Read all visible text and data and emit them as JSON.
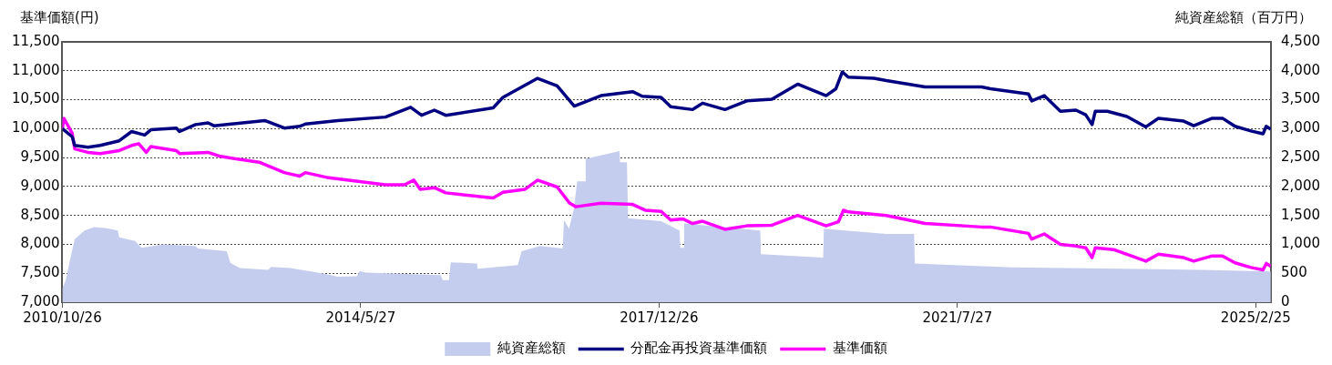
{
  "chart_data": {
    "type": "line",
    "ylabel": "基準価額(円)",
    "y2label": "純資産総額（百万円）",
    "legend": "bottom",
    "grid": "y",
    "marker": "none",
    "line_style": "solid",
    "xlim": [
      "2010-10-26",
      "2025-05-03"
    ],
    "xticks": [
      {
        "value": "2010-10-26",
        "label": "2010/10/26"
      },
      {
        "value": "2014-05-27",
        "label": "2014/5/27"
      },
      {
        "value": "2017-12-26",
        "label": "2017/12/26"
      },
      {
        "value": "2021-07-27",
        "label": "2021/7/27"
      },
      {
        "value": "2025-02-25",
        "label": "2025/2/25"
      }
    ],
    "ylim": [
      7000,
      11500
    ],
    "yticks": [
      {
        "value": 7000,
        "label": "7,000"
      },
      {
        "value": 7500,
        "label": "7,500"
      },
      {
        "value": 8000,
        "label": "8,000"
      },
      {
        "value": 8500,
        "label": "8,500"
      },
      {
        "value": 9000,
        "label": "9,000"
      },
      {
        "value": 9500,
        "label": "9,500"
      },
      {
        "value": 10000,
        "label": "10,000"
      },
      {
        "value": 10500,
        "label": "10,500"
      },
      {
        "value": 11000,
        "label": "11,000"
      },
      {
        "value": 11500,
        "label": "11,500"
      }
    ],
    "y2lim": [
      0,
      4500
    ],
    "y2ticks": [
      0,
      {
        "value": 500,
        "label": "500"
      },
      {
        "value": 1000,
        "label": "1,000"
      },
      {
        "value": 1500,
        "label": "1,500"
      },
      {
        "value": 2000,
        "label": "2,000"
      },
      {
        "value": 2500,
        "label": "2,500"
      },
      {
        "value": 3000,
        "label": "3,000"
      },
      {
        "value": 3500,
        "label": "3,500"
      },
      {
        "value": 4000,
        "label": "4,000"
      },
      {
        "value": 4500,
        "label": "4,500"
      }
    ],
    "series": [
      {
        "name": "純資産総額",
        "type": "area",
        "axis": "y2",
        "color": "#c5cdee",
        "x": [
          "2010-10-26",
          "2010-11-10",
          "2010-11-29",
          "2010-12-19",
          "2011-02-01",
          "2011-03-15",
          "2011-05-08",
          "2011-06-26",
          "2011-07-02",
          "2011-09-10",
          "2011-10-08",
          "2012-01-12",
          "2012-06-01",
          "2012-06-12",
          "2012-10-16",
          "2012-11-01",
          "2012-12-13",
          "2013-04-15",
          "2013-04-29",
          "2013-07-22",
          "2013-12-08",
          "2014-02-15",
          "2014-05-11",
          "2014-05-22",
          "2014-06-18",
          "2015-05-13",
          "2015-05-22",
          "2015-06-18",
          "2015-06-26",
          "2015-10-19",
          "2015-10-22",
          "2016-04-15",
          "2016-05-02",
          "2016-07-22",
          "2016-10-29",
          "2016-11-04",
          "2016-11-26",
          "2016-12-16",
          "2017-01-01",
          "2017-02-04",
          "2017-02-07",
          "2017-07-05",
          "2017-07-08",
          "2017-08-07",
          "2017-08-12",
          "2018-01-04",
          "2018-03-26",
          "2018-03-29",
          "2018-04-12",
          "2018-04-15",
          "2019-03-15",
          "2019-03-18",
          "2019-12-16",
          "2019-12-19",
          "2020-09-18",
          "2021-01-18",
          "2021-01-21",
          "2022-03-26",
          "2024-07-05",
          "2025-05-02"
        ],
        "values": [
          240,
          380,
          740,
          1090,
          1240,
          1300,
          1280,
          1240,
          1120,
          1060,
          940,
          1000,
          970,
          930,
          880,
          680,
          590,
          560,
          610,
          590,
          500,
          440,
          450,
          540,
          510,
          470,
          380,
          380,
          690,
          670,
          580,
          640,
          880,
          970,
          930,
          1420,
          1270,
          1590,
          2090,
          2090,
          2480,
          2610,
          2420,
          2420,
          1450,
          1400,
          1240,
          940,
          940,
          1360,
          1240,
          830,
          770,
          1270,
          1180,
          1180,
          670,
          600,
          560,
          530
        ]
      },
      {
        "name": "分配金再投資基準価額",
        "type": "line",
        "axis": "y",
        "color": "#000080",
        "x": [
          "2010-10-26",
          "2010-12-08",
          "2010-12-19",
          "2011-02-15",
          "2011-04-10",
          "2011-07-02",
          "2011-08-26",
          "2011-10-22",
          "2011-11-18",
          "2012-03-09",
          "2012-03-23",
          "2012-06-01",
          "2012-07-26",
          "2012-08-21",
          "2013-04-01",
          "2013-06-26",
          "2013-09-01",
          "2013-09-26",
          "2014-02-15",
          "2014-09-12",
          "2015-01-01",
          "2015-02-18",
          "2015-04-15",
          "2015-06-04",
          "2015-12-29",
          "2016-02-10",
          "2016-07-11",
          "2016-10-05",
          "2016-12-19",
          "2017-04-15",
          "2017-09-01",
          "2017-10-13",
          "2018-01-04",
          "2018-02-15",
          "2018-05-22",
          "2018-07-05",
          "2018-10-11",
          "2019-01-15",
          "2019-05-05",
          "2019-08-26",
          "2019-12-29",
          "2020-02-10",
          "2020-03-09",
          "2020-04-04",
          "2020-07-26",
          "2020-09-18",
          "2021-03-07",
          "2021-11-10",
          "2021-12-19",
          "2022-06-04",
          "2022-06-18",
          "2022-08-12",
          "2022-10-22",
          "2022-12-29",
          "2023-02-10",
          "2023-03-10",
          "2023-03-24",
          "2023-05-16",
          "2023-08-10",
          "2023-11-01",
          "2023-12-26",
          "2024-04-15",
          "2024-05-29",
          "2024-08-18",
          "2024-10-02",
          "2024-11-26",
          "2025-02-04",
          "2025-03-29",
          "2025-04-12",
          "2025-05-02"
        ],
        "values": [
          10000,
          9860,
          9710,
          9680,
          9710,
          9790,
          9950,
          9890,
          9980,
          10010,
          9950,
          10070,
          10100,
          10050,
          10140,
          10010,
          10040,
          10080,
          10140,
          10200,
          10370,
          10230,
          10320,
          10230,
          10360,
          10540,
          10870,
          10740,
          10390,
          10570,
          10640,
          10560,
          10540,
          10380,
          10330,
          10440,
          10330,
          10480,
          10510,
          10770,
          10570,
          10690,
          10980,
          10890,
          10870,
          10830,
          10720,
          10720,
          10690,
          10600,
          10480,
          10570,
          10300,
          10320,
          10240,
          10070,
          10300,
          10300,
          10210,
          10030,
          10180,
          10130,
          10050,
          10180,
          10180,
          10040,
          9960,
          9910,
          10040,
          9990
        ]
      },
      {
        "name": "基準価額",
        "type": "line",
        "axis": "y",
        "color": "#ff00ff",
        "x": [
          "2010-10-26",
          "2010-11-01",
          "2010-12-08",
          "2010-12-19",
          "2011-02-15",
          "2011-04-10",
          "2011-07-02",
          "2011-08-26",
          "2011-09-26",
          "2011-10-29",
          "2011-11-18",
          "2012-03-09",
          "2012-03-23",
          "2012-07-26",
          "2012-09-18",
          "2013-03-07",
          "2013-06-26",
          "2013-09-01",
          "2013-09-26",
          "2014-01-07",
          "2014-09-12",
          "2014-12-05",
          "2015-01-15",
          "2015-02-12",
          "2015-04-15",
          "2015-06-04",
          "2015-08-12",
          "2015-12-29",
          "2016-02-10",
          "2016-05-16",
          "2016-07-11",
          "2016-10-05",
          "2016-11-29",
          "2016-12-26",
          "2017-04-15",
          "2017-09-01",
          "2017-10-26",
          "2018-01-04",
          "2018-02-15",
          "2018-04-10",
          "2018-05-22",
          "2018-07-05",
          "2018-10-11",
          "2019-01-15",
          "2019-05-05",
          "2019-08-26",
          "2019-12-29",
          "2020-02-21",
          "2020-03-14",
          "2020-04-04",
          "2020-09-18",
          "2021-03-07",
          "2021-11-10",
          "2021-12-19",
          "2022-06-04",
          "2022-06-18",
          "2022-08-12",
          "2022-10-22",
          "2022-12-29",
          "2023-02-10",
          "2023-03-10",
          "2023-03-24",
          "2023-06-12",
          "2023-11-01",
          "2023-12-26",
          "2024-04-15",
          "2024-05-29",
          "2024-08-18",
          "2024-10-02",
          "2024-11-26",
          "2025-02-04",
          "2025-03-29",
          "2025-04-12",
          "2025-05-02"
        ],
        "values": [
          10000,
          10180,
          9920,
          9650,
          9590,
          9570,
          9620,
          9710,
          9740,
          9590,
          9690,
          9620,
          9570,
          9590,
          9520,
          9420,
          9240,
          9180,
          9240,
          9150,
          9030,
          9030,
          9110,
          8950,
          8980,
          8890,
          8860,
          8800,
          8900,
          8950,
          9110,
          8990,
          8710,
          8650,
          8710,
          8690,
          8590,
          8570,
          8420,
          8440,
          8360,
          8400,
          8260,
          8320,
          8330,
          8500,
          8320,
          8390,
          8590,
          8560,
          8500,
          8360,
          8300,
          8300,
          8190,
          8090,
          8180,
          8000,
          7970,
          7940,
          7770,
          7940,
          7910,
          7710,
          7830,
          7770,
          7710,
          7800,
          7800,
          7680,
          7600,
          7560,
          7670,
          7620
        ]
      }
    ]
  }
}
